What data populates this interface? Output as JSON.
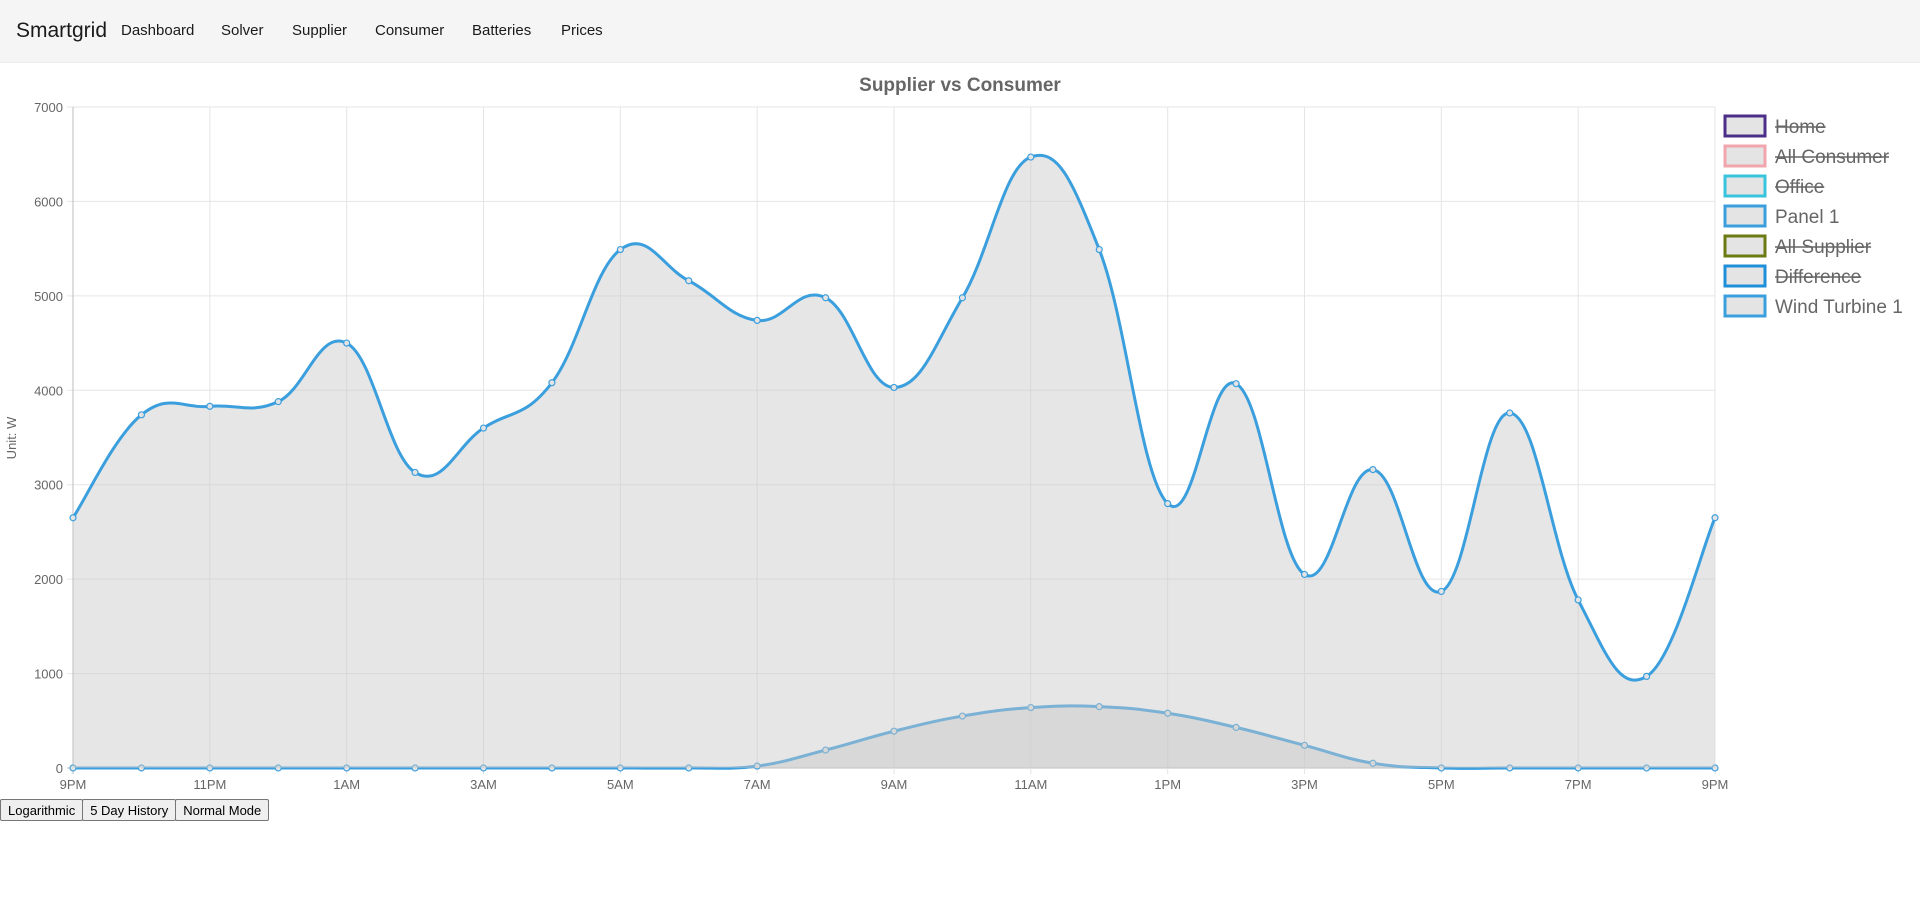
{
  "navbar": {
    "brand": "Smartgrid",
    "links": [
      "Dashboard",
      "Solver",
      "Supplier",
      "Consumer",
      "Batteries",
      "Prices"
    ]
  },
  "buttons": {
    "logarithmic": "Logarithmic",
    "history": "5 Day History",
    "normal": "Normal Mode"
  },
  "chart_data": {
    "type": "area",
    "title": "Supplier vs Consumer",
    "ylabel": "Unit: W",
    "ylim": [
      0,
      7000
    ],
    "yticks": [
      0,
      1000,
      2000,
      3000,
      4000,
      5000,
      6000,
      7000
    ],
    "xtick_labels": [
      "9PM",
      "11PM",
      "1AM",
      "3AM",
      "5AM",
      "7AM",
      "9AM",
      "11AM",
      "1PM",
      "3PM",
      "5PM",
      "7PM",
      "9PM"
    ],
    "point_count": 25,
    "grid": true,
    "legend_position": "right",
    "fill_color": "#e4e4e4",
    "series": [
      {
        "name": "Home",
        "color": "#4b2e8a",
        "hidden": true,
        "values": []
      },
      {
        "name": "All Consumer",
        "color": "#f2a5ad",
        "hidden": true,
        "values": []
      },
      {
        "name": "Office",
        "color": "#38c4dc",
        "hidden": true,
        "values": []
      },
      {
        "name": "Panel 1",
        "color": "#3b9fde",
        "hidden": false,
        "values": [
          0,
          0,
          0,
          0,
          0,
          0,
          0,
          0,
          0,
          0,
          20,
          190,
          390,
          550,
          640,
          650,
          580,
          430,
          240,
          50,
          0,
          0,
          0,
          0,
          0
        ]
      },
      {
        "name": "All Supplier",
        "color": "#6b7a12",
        "hidden": true,
        "values": []
      },
      {
        "name": "Difference",
        "color": "#1e8fd8",
        "hidden": true,
        "values": []
      },
      {
        "name": "Wind Turbine 1",
        "color": "#3b9fde",
        "hidden": false,
        "values": [
          2650,
          3740,
          3830,
          3880,
          4500,
          3130,
          3600,
          4080,
          5490,
          5160,
          4740,
          4980,
          4030,
          4980,
          6470,
          5490,
          2800,
          4070,
          2050,
          3160,
          1870,
          3760,
          1780,
          970,
          2650
        ]
      }
    ]
  }
}
